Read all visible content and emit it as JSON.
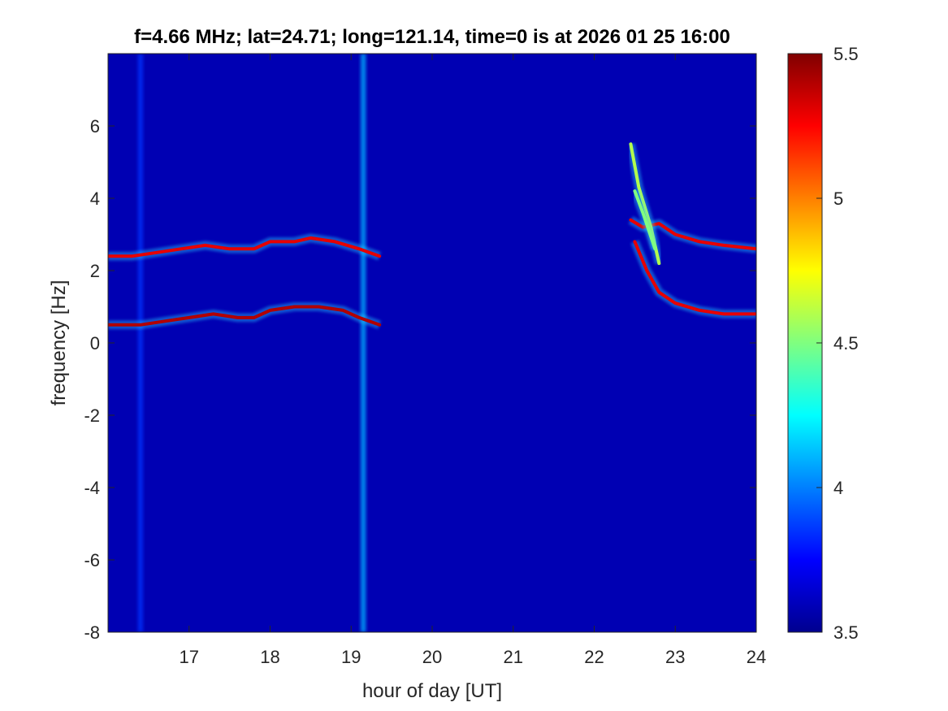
{
  "chart_data": {
    "type": "heatmap",
    "title": "f=4.66 MHz;  lat=24.71; long=121.14, time=0 is at 2026 01 25 16:00",
    "xlabel": "hour of day [UT]",
    "ylabel": "frequency [Hz]",
    "xlim": [
      16,
      24
    ],
    "ylim": [
      -8,
      8
    ],
    "x_ticks": [
      "17",
      "18",
      "19",
      "20",
      "21",
      "22",
      "23",
      "24"
    ],
    "y_ticks": [
      "-8",
      "-6",
      "-4",
      "-2",
      "0",
      "2",
      "4",
      "6"
    ],
    "colorbar": {
      "colormap": "jet",
      "range": [
        3.5,
        5.5
      ],
      "ticks": [
        "3.5",
        "4",
        "4.5",
        "5",
        "5.5"
      ]
    },
    "background_level": 3.6,
    "vertical_stripes": [
      {
        "x": 16.4,
        "level": 3.85
      },
      {
        "x": 19.15,
        "level": 4.1
      }
    ],
    "traces": [
      {
        "points": [
          [
            16.0,
            2.4
          ],
          [
            16.3,
            2.4
          ],
          [
            16.6,
            2.5
          ],
          [
            16.9,
            2.6
          ],
          [
            17.2,
            2.7
          ],
          [
            17.5,
            2.6
          ],
          [
            17.8,
            2.6
          ],
          [
            18.0,
            2.8
          ],
          [
            18.3,
            2.8
          ],
          [
            18.5,
            2.9
          ],
          [
            18.8,
            2.8
          ],
          [
            19.1,
            2.6
          ],
          [
            19.35,
            2.4
          ]
        ],
        "level": 5.3
      },
      {
        "points": [
          [
            16.0,
            0.5
          ],
          [
            16.4,
            0.5
          ],
          [
            16.7,
            0.6
          ],
          [
            17.0,
            0.7
          ],
          [
            17.3,
            0.8
          ],
          [
            17.6,
            0.7
          ],
          [
            17.8,
            0.7
          ],
          [
            18.0,
            0.9
          ],
          [
            18.3,
            1.0
          ],
          [
            18.6,
            1.0
          ],
          [
            18.9,
            0.9
          ],
          [
            19.1,
            0.7
          ],
          [
            19.35,
            0.5
          ]
        ],
        "level": 5.4
      },
      {
        "points": [
          [
            22.45,
            3.4
          ],
          [
            22.6,
            3.2
          ],
          [
            22.8,
            3.3
          ],
          [
            23.0,
            3.0
          ],
          [
            23.3,
            2.8
          ],
          [
            23.6,
            2.7
          ],
          [
            24.0,
            2.6
          ]
        ],
        "level": 5.3
      },
      {
        "points": [
          [
            22.5,
            2.8
          ],
          [
            22.65,
            2.0
          ],
          [
            22.8,
            1.4
          ],
          [
            23.0,
            1.1
          ],
          [
            23.3,
            0.9
          ],
          [
            23.6,
            0.8
          ],
          [
            24.0,
            0.8
          ]
        ],
        "level": 5.3
      },
      {
        "points": [
          [
            22.45,
            5.5
          ],
          [
            22.55,
            4.3
          ],
          [
            22.7,
            3.2
          ],
          [
            22.8,
            2.2
          ]
        ],
        "level": 4.6
      },
      {
        "points": [
          [
            22.5,
            4.2
          ],
          [
            22.6,
            3.6
          ],
          [
            22.75,
            2.6
          ]
        ],
        "level": 4.5
      }
    ]
  }
}
